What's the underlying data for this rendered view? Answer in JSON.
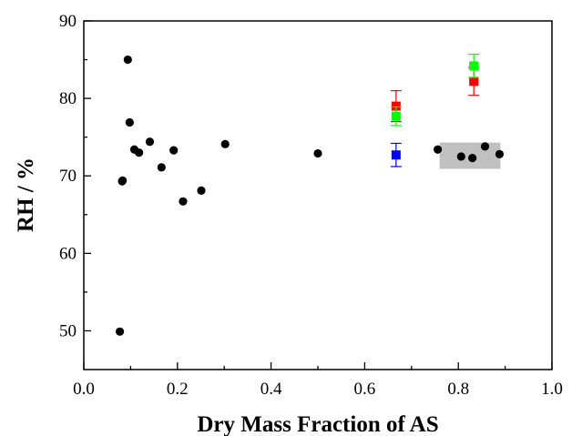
{
  "chart_data": {
    "type": "scatter",
    "title": "",
    "xlabel": "Dry Mass Fraction of AS",
    "ylabel": "RH / %",
    "xlim": [
      0.0,
      1.0
    ],
    "ylim": [
      45,
      90
    ],
    "x_ticks": [
      "0.0",
      "0.2",
      "0.4",
      "0.6",
      "0.8",
      "1.0"
    ],
    "y_ticks": [
      "50",
      "60",
      "70",
      "80",
      "90"
    ],
    "grid": false,
    "legend": "none",
    "shaded_region": {
      "x": [
        0.76,
        0.89
      ],
      "y": [
        70.9,
        74.3
      ],
      "color": "#c0c0c0"
    },
    "series": [
      {
        "marker": "circle",
        "color": "#000000",
        "points": [
          {
            "x": 0.077,
            "y": 49.9
          },
          {
            "x": 0.082,
            "y": 69.3
          },
          {
            "x": 0.083,
            "y": 69.4
          },
          {
            "x": 0.094,
            "y": 85.0
          },
          {
            "x": 0.098,
            "y": 76.9
          },
          {
            "x": 0.108,
            "y": 73.4
          },
          {
            "x": 0.118,
            "y": 73.0
          },
          {
            "x": 0.141,
            "y": 74.4
          },
          {
            "x": 0.166,
            "y": 71.1
          },
          {
            "x": 0.192,
            "y": 73.3
          },
          {
            "x": 0.212,
            "y": 66.7
          },
          {
            "x": 0.251,
            "y": 68.1
          },
          {
            "x": 0.302,
            "y": 74.1
          },
          {
            "x": 0.5,
            "y": 72.9
          },
          {
            "x": 0.667,
            "y": 72.7
          },
          {
            "x": 0.756,
            "y": 73.4
          },
          {
            "x": 0.806,
            "y": 72.5
          },
          {
            "x": 0.83,
            "y": 72.3
          },
          {
            "x": 0.857,
            "y": 73.8
          },
          {
            "x": 0.888,
            "y": 72.8
          }
        ]
      },
      {
        "marker": "square",
        "color": "#ff0000",
        "points": [
          {
            "x": 0.667,
            "y": 79.0,
            "err": 2.0
          },
          {
            "x": 0.833,
            "y": 82.2,
            "err": 1.8
          }
        ]
      },
      {
        "marker": "square",
        "color": "#00ff00",
        "points": [
          {
            "x": 0.667,
            "y": 77.7,
            "err": 1.2
          },
          {
            "x": 0.833,
            "y": 84.2,
            "err": 1.5
          }
        ]
      },
      {
        "marker": "square",
        "color": "#0000ff",
        "points": [
          {
            "x": 0.667,
            "y": 72.7,
            "err": 1.5
          }
        ]
      }
    ]
  }
}
